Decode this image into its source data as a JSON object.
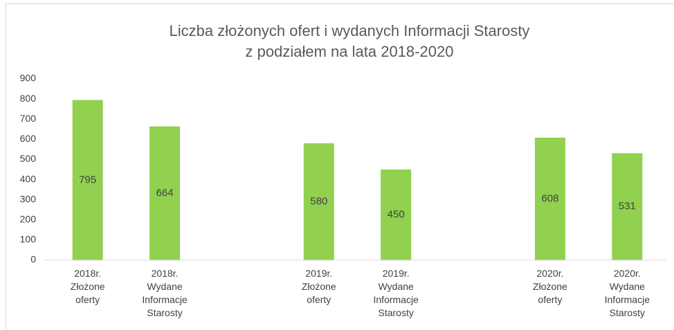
{
  "chart_data": {
    "type": "bar",
    "title": [
      "Liczba złożonych ofert i wydanych Informacji Starosty",
      "z podziałem na lata 2018-2020"
    ],
    "categories": [
      [
        "2018r.",
        "Złożone",
        "oferty"
      ],
      [
        "2018r.",
        "Wydane",
        "Informacje",
        "Starosty"
      ],
      null,
      [
        "2019r.",
        "Złożone",
        "oferty"
      ],
      [
        "2019r.",
        "Wydane",
        "Informacje",
        "Starosty"
      ],
      null,
      [
        "2020r.",
        "Złożone",
        "oferty"
      ],
      [
        "2020r.",
        "Wydane",
        "Informacje",
        "Starosty"
      ]
    ],
    "values": [
      795,
      664,
      null,
      580,
      450,
      null,
      608,
      531
    ],
    "color": "#92d050",
    "ylim": [
      0,
      900
    ],
    "yticks": [
      0,
      100,
      200,
      300,
      400,
      500,
      600,
      700,
      800,
      900
    ],
    "grid": false,
    "data_labels": true
  }
}
